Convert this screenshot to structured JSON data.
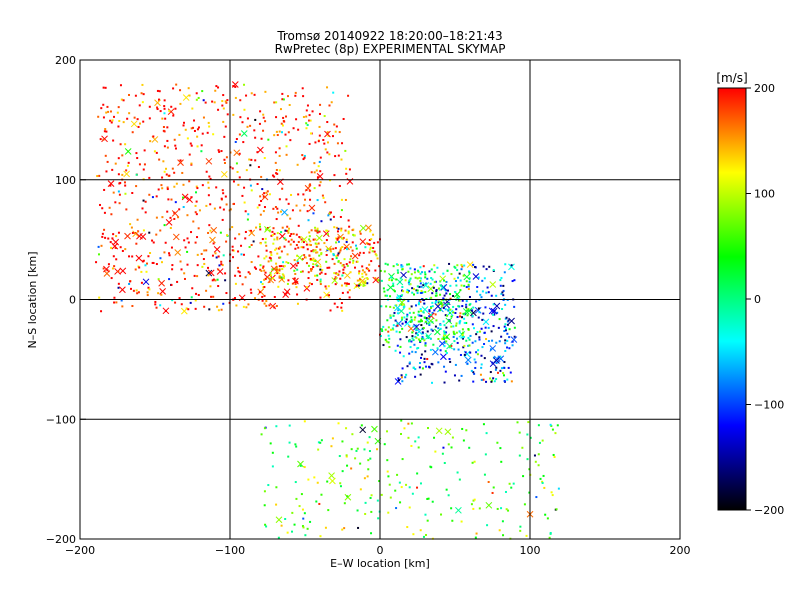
{
  "chart_data": {
    "type": "scatter",
    "title": "Tromsø 20140922 18:20:00–18:21:43",
    "subtitle": "RwPretec (8p) EXPERIMENTAL SKYMAP",
    "xlabel": "E–W location [km]",
    "ylabel": "N–S location [km]",
    "xlim": [
      -200,
      200
    ],
    "ylim": [
      -200,
      200
    ],
    "xticks": [
      -200,
      -100,
      0,
      100,
      200
    ],
    "yticks": [
      -200,
      -100,
      0,
      100,
      200
    ],
    "grid": true,
    "marker_types": [
      "dot",
      "cross"
    ],
    "colorbar": {
      "label": "[m/s]",
      "range": [
        -200,
        200
      ],
      "ticks": [
        -200,
        -100,
        0,
        100,
        200
      ],
      "colors": [
        "#000000",
        "#0000ff",
        "#00ffff",
        "#00ff00",
        "#ffff00",
        "#ff0000"
      ]
    },
    "clusters": [
      {
        "region": "north-west",
        "x_range": [
          -190,
          -20
        ],
        "y_range": [
          -10,
          180
        ],
        "dominant_velocity": 200
      },
      {
        "region": "north-central",
        "x_range": [
          -80,
          0
        ],
        "y_range": [
          10,
          60
        ],
        "dominant_velocity": 150
      },
      {
        "region": "east-central",
        "x_range": [
          10,
          90
        ],
        "y_range": [
          -70,
          30
        ],
        "dominant_velocity": -100
      },
      {
        "region": "center",
        "x_range": [
          0,
          60
        ],
        "y_range": [
          -40,
          30
        ],
        "dominant_velocity": 30
      },
      {
        "region": "south",
        "x_range": [
          -80,
          120
        ],
        "y_range": [
          -200,
          -100
        ],
        "dominant_velocity": 60
      }
    ]
  }
}
